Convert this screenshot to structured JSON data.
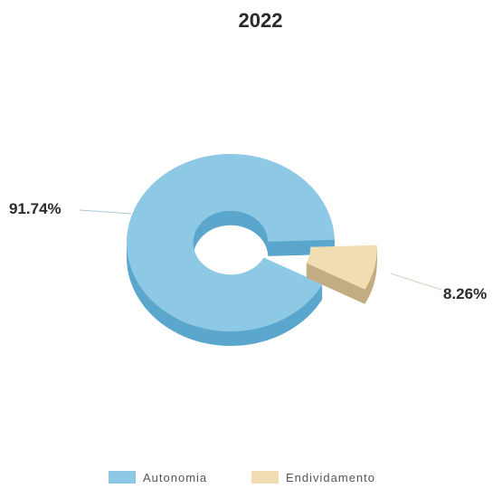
{
  "chart_data": {
    "type": "pie",
    "title": "2022",
    "categories": [
      "Autonomia",
      "Endividamento"
    ],
    "values": [
      91.74,
      8.26
    ],
    "value_labels": [
      "91.74%",
      "8.26%"
    ],
    "colors": [
      "#8dc9e4",
      "#f1ddb2"
    ],
    "side_colors": [
      "#5aa6cc",
      "#c2ad82"
    ],
    "legend_position": "bottom"
  }
}
